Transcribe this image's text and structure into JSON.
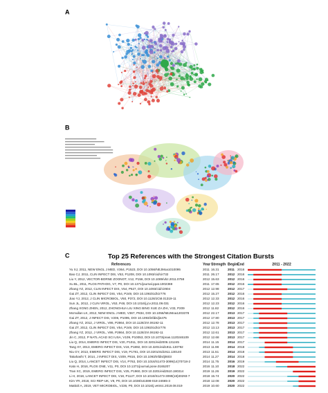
{
  "panels": {
    "a": {
      "label": "A"
    },
    "b": {
      "label": "B"
    },
    "c": {
      "label": "C",
      "title": "Top 25 References with the Strongest Citation Bursts",
      "table": {
        "headers": [
          "References",
          "Year",
          "Strength",
          "Begin",
          "End"
        ],
        "timeline": {
          "label": "2011 - 2022",
          "range": [
            2011,
            2022
          ]
        },
        "rows": [
          [
            "Yu XJ, 2011, NEW ENGL J MED, V364, P1523, DOI 10.1056/NEJMoa1010095",
            2011,
            "16.31",
            2011,
            2016
          ],
          [
            "Bao CJ, 2011, CLIN INFECT DIS, V53, P1208, DOI 10.1093/cid/cir732",
            2011,
            "26.17",
            2012,
            2016
          ],
          [
            "Liu Y, 2012, VECTOR-BORNE ZOONOT, V12, P156, DOI 10.1089/vbz.2011.0758",
            2012,
            "15.63",
            2012,
            2016
          ],
          [
            "Xu BL, 2011, PLOS PATHOG, V7, P0, DOI 10.1371/journal.ppat.1002369",
            2011,
            "17.65",
            2012,
            2016
          ],
          [
            "Zhang YZ, 2012, CLIN INFECT DIS, V54, P527, DOI 10.1093/cid/cir804",
            2012,
            "12.98",
            2012,
            2017
          ],
          [
            "Gai ZT, 2012, CLIN INFECT DIS, V54, P249, DOI 10.1093/cid/cir776",
            2012,
            "15.27",
            2012,
            2016
          ],
          [
            "Jiao YJ, 2012, J CLIN MICROBIOL, V50, P372, DOI 10.1128/JCM.01319-11",
            2012,
            "12.33",
            2012,
            2016
          ],
          [
            "Sun JL, 2012, J CLIN VIROL, V53, P48, DOI 10.1016/j.jcv.2011.09.031",
            2012,
            "12.23",
            2012,
            2016
          ],
          [
            "Zhang XGNG ZHEN, 2012, ZHONGHUA LIU XING BING XUE ZA ZHI, V33, P209",
            2012,
            "11.82",
            2012,
            2016
          ],
          [
            "Mcmullan LK, 2012, NEW ENGL J MED, V367, P834, DOI 10.1056/NEJMoa1203378",
            2012,
            "22.17",
            2013,
            2017
          ],
          [
            "Gai ZT, 2012, J INFECT DIS, V206, P1095, DOI 10.1093/infdis/jis475",
            2012,
            "17.80",
            2013,
            2017
          ],
          [
            "Zhang YZ, 2012, J VIROL, V86, P2864, DOI 10.1128/JVI.06192-11",
            2012,
            "12.78",
            2013,
            2017
          ],
          [
            "Gai ZT, 2012, CLIN INFECT DIS, V54, P249, DOI 10.1093/cid/cir776",
            2012,
            "13.13",
            2013,
            2017
          ],
          [
            "Zhang YZ, 2012, J VIROL, V86, P2864, DOI 10.1128/JVI.06192-11",
            2012,
            "12.61",
            2013,
            2017
          ],
          [
            "Jin C, 2012, P NATL ACAD SCI USA, V109, P10053, DOI 10.1073/pnas.1120246109",
            2012,
            "12.68",
            2013,
            2017
          ],
          [
            "Liu Q, 2014, EMERG INFECT DIS, V20, P1011, DOI 10.3201/eid2006.131245",
            2014,
            "11.15",
            2014,
            2017
          ],
          [
            "Tang XY, 2013, EMERG INFECT DIS, V19, P1892, DOI 10.3201/eid1911.130792",
            2013,
            "11.98",
            2014,
            2018
          ],
          [
            "Niu GY, 2013, EMERG INFECT DIS, V19, P1781, DOI 10.3201/eid1911.130140",
            2013,
            "11.51",
            2014,
            2018
          ],
          [
            "Takahashi T, 2014, J INFECT DIS, V209, P816, DOI 10.1093/infdis/jit603",
            2014,
            "11.27",
            2014,
            2018
          ],
          [
            "Liu Q, 2014, LANCET INFECT DIS, V14, P763, DOI 10.1016/S1473-3099(14)70718-2",
            2014,
            "11.75",
            2016,
            2019
          ],
          [
            "Kato H, 2016, PLOS ONE, V11, P0, DOI 10.1371/journal.pone.0165207",
            2016,
            "11.10",
            2018,
            2022
          ],
          [
            "Tran XC, 2019, EMERG INFECT DIS, V25, P1960, DOI 10.3201/eid2510.190314",
            2019,
            "11.26",
            2019,
            2022
          ],
          [
            "Li H, 2018, LANCET INFECT DIS, V18, P1127, DOI 10.1016/S1473-3099(18)30293-7",
            2018,
            "15.74",
            2020,
            2022
          ],
          [
            "Kim YR, 2018, SCI REP-UK, V8, P0, DOI 10.1038/s41598-018-24665-3",
            2018,
            "12.08",
            2020,
            2022
          ],
          [
            "Mattioli A, 2019, VET MICROBIOL, V236, P0, DOI 10.1016/j.vetmic.2019.08.019",
            2019,
            "10.60",
            2020,
            2022
          ]
        ]
      }
    }
  }
}
